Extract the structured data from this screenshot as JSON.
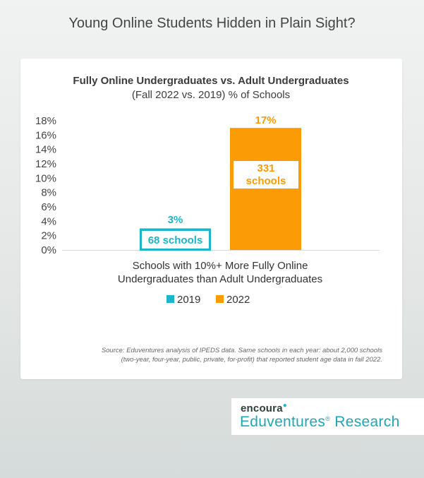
{
  "page_title": "Young Online Students Hidden in Plain Sight?",
  "chart_data": {
    "type": "bar",
    "title": "Fully Online Undergraduates vs. Adult Undergraduates",
    "subtitle": "(Fall 2022 vs. 2019) % of Schools",
    "categories": [
      "Schools with 10%+ More Fully Online Undergraduates than Adult Undergraduates"
    ],
    "xlabel_lines": [
      "Schools with 10%+ More Fully Online",
      "Undergraduates than Adult Undergraduates"
    ],
    "ylim": [
      0,
      18
    ],
    "yticks": [
      0,
      2,
      4,
      6,
      8,
      10,
      12,
      14,
      16,
      18
    ],
    "ytick_suffix": "%",
    "grid": false,
    "legend_position": "bottom",
    "series": [
      {
        "name": "2019",
        "values": [
          3
        ],
        "color": "#1cb5c9",
        "value_label": "3%",
        "annotation": [
          "68 schools"
        ]
      },
      {
        "name": "2022",
        "values": [
          17
        ],
        "color": "#fb9b06",
        "value_label": "17%",
        "annotation": [
          "331",
          "schools"
        ]
      }
    ]
  },
  "source_lines": [
    "Source: Eduventures analysis of IPEDS data. Same schools in each year: about 2,000 schools",
    "(two-year, four-year, public, private, for-profit) that reported student age data in fall 2022."
  ],
  "logo": {
    "brand": "encoura",
    "product": "Eduventures",
    "product_suffix": "Research",
    "registered_mark": "®"
  }
}
